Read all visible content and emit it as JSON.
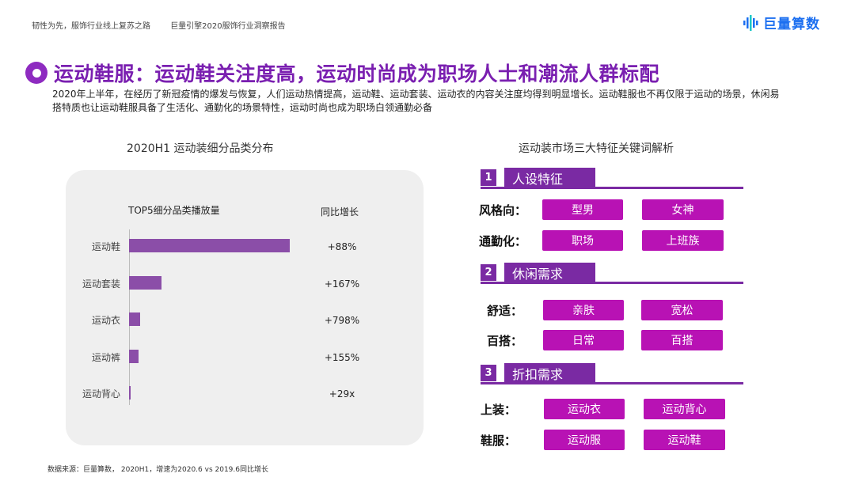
{
  "header": {
    "crumb_1": "韧性为先，服饰行业线上复苏之路",
    "crumb_2": "巨量引擎2020服饰行业洞察报告",
    "brand": "巨量算数",
    "brand_color": "#1c6ff0"
  },
  "title": "运动鞋服：运动鞋关注度高，运动时尚成为职场人士和潮流人群标配",
  "intro": "2020年上半年，在经历了新冠疫情的爆发与恢复，人们运动热情提高，运动鞋、运动套装、运动衣的内容关注度均得到明显增长。运动鞋服也不再仅限于运动的场景，休闲易搭特质也让运动鞋服具备了生活化、通勤化的场景特性，运动时尚也成为职场白领通勤必备",
  "left": {
    "heading": "2020H1 运动装细分品类分布"
  },
  "chart_data": {
    "type": "bar",
    "orientation": "horizontal",
    "title": "TOP5细分品类播放量",
    "growth_header": "同比增长",
    "categories": [
      "运动鞋",
      "运动套装",
      "运动衣",
      "运动裤",
      "运动背心"
    ],
    "values": [
      100,
      20,
      7,
      6,
      1
    ],
    "value_note": "relative, axis unlabeled",
    "growth": [
      "+88%",
      "+167%",
      "+798%",
      "+155%",
      "+29x"
    ],
    "bar_color": "#8b4ea8"
  },
  "right": {
    "heading": "运动装市场三大特征关键词解析",
    "sections": [
      {
        "num": "1",
        "title": "人设特征",
        "rows": [
          {
            "label": "风格向：",
            "tags": [
              "型男",
              "女神"
            ]
          },
          {
            "label": "通勤化：",
            "tags": [
              "职场",
              "上班族"
            ]
          }
        ]
      },
      {
        "num": "2",
        "title": "休闲需求",
        "rows": [
          {
            "label": "舒适：",
            "tags": [
              "亲肤",
              "宽松"
            ]
          },
          {
            "label": "百搭：",
            "tags": [
              "日常",
              "百搭"
            ]
          }
        ]
      },
      {
        "num": "3",
        "title": "折扣需求",
        "rows": [
          {
            "label": "上装：",
            "tags": [
              "运动衣",
              "运动背心"
            ]
          },
          {
            "label": "鞋服：",
            "tags": [
              "运动服",
              "运动鞋"
            ]
          }
        ]
      }
    ]
  },
  "footer": {
    "source": "数据来源：巨量算数， 2020H1，增速为2020.6 vs 2019.6同比增长"
  },
  "colors": {
    "accent": "#7a2aa3",
    "title": "#7a1fb0",
    "tag": "#b812b4"
  }
}
